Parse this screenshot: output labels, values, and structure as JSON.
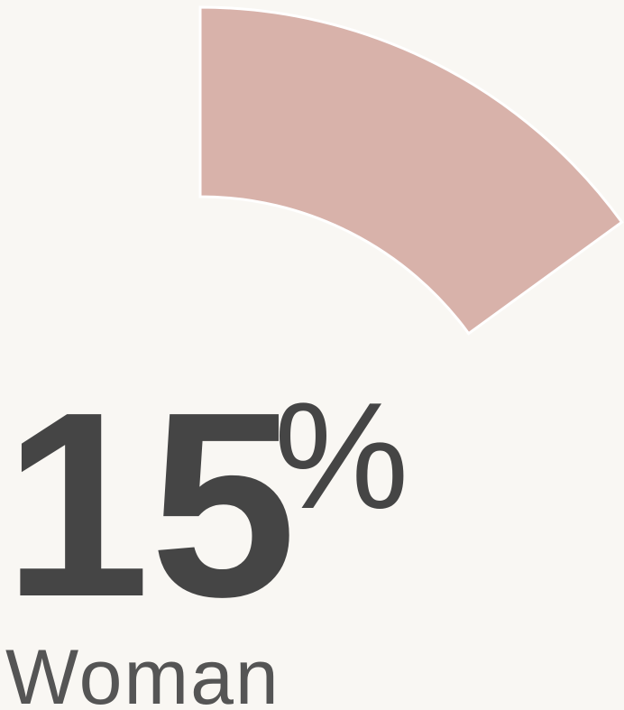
{
  "chart_data": {
    "type": "pie",
    "categories": [
      "Woman"
    ],
    "values": [
      15
    ],
    "unit": "%",
    "color": "#d8b2aa"
  }
}
